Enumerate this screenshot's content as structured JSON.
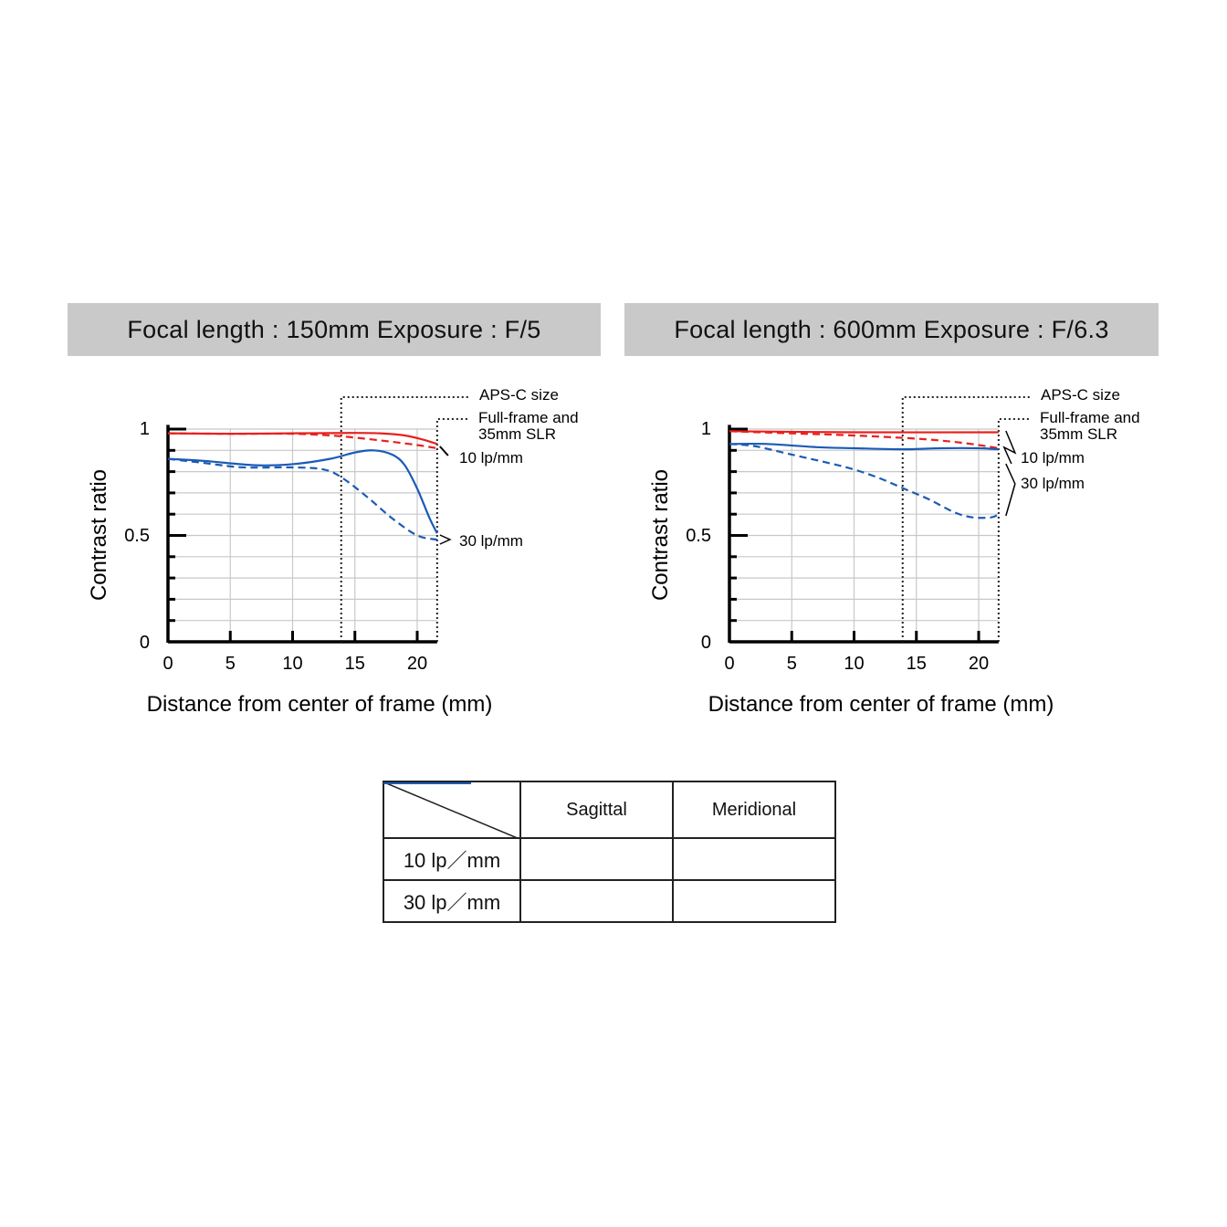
{
  "chart_data": [
    {
      "type": "line",
      "title": "Focal length : 150mm  Exposure : F/5",
      "xlabel": "Distance from center of frame (mm)",
      "ylabel": "Contrast ratio",
      "xlim": [
        0,
        21.6
      ],
      "ylim": [
        0,
        1
      ],
      "xticks": [
        "0",
        "5",
        "10",
        "15",
        "20"
      ],
      "yticks": [
        "0",
        "0.5",
        "1"
      ],
      "grid": true,
      "annotations": {
        "apsc": "APS-C size",
        "apsc_x": 13.9,
        "ff": "Full-frame and",
        "ff2": "35mm SLR",
        "ff_x": 21.6,
        "l10": "10 lp/mm",
        "l30": "30 lp/mm"
      },
      "series": [
        {
          "name": "10 lp/mm Sagittal",
          "color": "#e8201e",
          "dash": false,
          "x": [
            0,
            5,
            10,
            15,
            17,
            19,
            20.5,
            21.6
          ],
          "y": [
            0.98,
            0.978,
            0.98,
            0.982,
            0.98,
            0.97,
            0.95,
            0.93
          ]
        },
        {
          "name": "10 lp/mm Meridional",
          "color": "#e8201e",
          "dash": true,
          "x": [
            0,
            5,
            10,
            13,
            15,
            18,
            20,
            21.6
          ],
          "y": [
            0.98,
            0.978,
            0.978,
            0.97,
            0.96,
            0.94,
            0.925,
            0.91
          ]
        },
        {
          "name": "30 lp/mm Sagittal",
          "color": "#1a5bb5",
          "dash": false,
          "x": [
            0,
            3,
            7,
            10,
            13,
            15,
            16.5,
            18,
            19,
            20,
            21,
            21.6
          ],
          "y": [
            0.86,
            0.85,
            0.83,
            0.835,
            0.86,
            0.89,
            0.9,
            0.88,
            0.83,
            0.72,
            0.58,
            0.51
          ]
        },
        {
          "name": "30 lp/mm Meridional",
          "color": "#1a5bb5",
          "dash": true,
          "x": [
            0,
            3,
            6,
            10,
            12.5,
            14,
            16,
            18,
            20,
            21.6
          ],
          "y": [
            0.86,
            0.84,
            0.82,
            0.82,
            0.81,
            0.77,
            0.68,
            0.58,
            0.5,
            0.48
          ]
        }
      ]
    },
    {
      "type": "line",
      "title": "Focal length : 600mm  Exposure : F/6.3",
      "xlabel": "Distance from center of frame (mm)",
      "ylabel": "Contrast ratio",
      "xlim": [
        0,
        21.6
      ],
      "ylim": [
        0,
        1
      ],
      "xticks": [
        "0",
        "5",
        "10",
        "15",
        "20"
      ],
      "yticks": [
        "0",
        "0.5",
        "1"
      ],
      "grid": true,
      "annotations": {
        "apsc": "APS-C size",
        "apsc_x": 13.9,
        "ff": "Full-frame and",
        "ff2": "35mm SLR",
        "ff_x": 21.6,
        "l10": "10 lp/mm",
        "l30": "30 lp/mm"
      },
      "series": [
        {
          "name": "10 lp/mm Sagittal",
          "color": "#e8201e",
          "dash": false,
          "x": [
            0,
            10,
            21.6
          ],
          "y": [
            0.99,
            0.985,
            0.985
          ]
        },
        {
          "name": "10 lp/mm Meridional",
          "color": "#e8201e",
          "dash": true,
          "x": [
            0,
            5,
            10,
            15,
            18,
            20,
            21.6
          ],
          "y": [
            0.99,
            0.98,
            0.97,
            0.955,
            0.94,
            0.925,
            0.91
          ]
        },
        {
          "name": "30 lp/mm Sagittal",
          "color": "#1a5bb5",
          "dash": false,
          "x": [
            0,
            3,
            7,
            10,
            14,
            17,
            20,
            21.6
          ],
          "y": [
            0.93,
            0.93,
            0.915,
            0.91,
            0.905,
            0.91,
            0.91,
            0.905
          ]
        },
        {
          "name": "30 lp/mm Meridional",
          "color": "#1a5bb5",
          "dash": true,
          "x": [
            0,
            2,
            5,
            8,
            10,
            12,
            14,
            16,
            18,
            19.5,
            21,
            21.6
          ],
          "y": [
            0.93,
            0.92,
            0.88,
            0.84,
            0.81,
            0.77,
            0.72,
            0.67,
            0.61,
            0.585,
            0.585,
            0.6
          ]
        }
      ]
    }
  ],
  "legend": {
    "sagittal": "Sagittal",
    "meridional": "Meridional",
    "r10": "10 lp／mm",
    "r30": "30 lp／mm",
    "c10": "#e8201e",
    "c30": "#1a5bb5"
  }
}
